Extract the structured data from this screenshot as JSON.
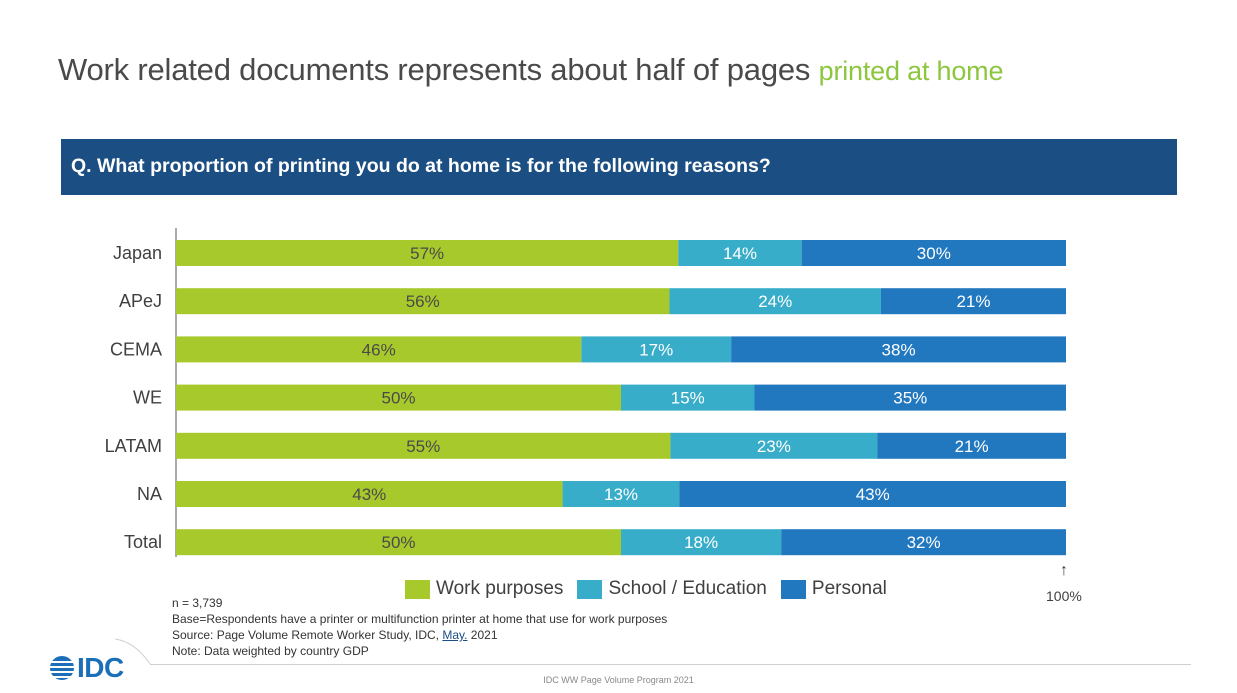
{
  "title": {
    "main": "Work related documents represents about half of pages",
    "accent": "printed at home"
  },
  "question": "Q. What proportion of printing you do at home is for the following reasons?",
  "chart_data": {
    "type": "bar",
    "orientation": "horizontal",
    "stacked": true,
    "categories": [
      "Japan",
      "APeJ",
      "CEMA",
      "WE",
      "LATAM",
      "NA",
      "Total"
    ],
    "series": [
      {
        "name": "Work purposes",
        "color": "#a8c92b",
        "values": [
          57,
          56,
          46,
          50,
          55,
          43,
          50
        ]
      },
      {
        "name": "School / Education",
        "color": "#38adc9",
        "values": [
          14,
          24,
          17,
          15,
          23,
          13,
          18
        ]
      },
      {
        "name": "Personal",
        "color": "#2278bf",
        "values": [
          30,
          21,
          38,
          35,
          21,
          43,
          32
        ]
      }
    ],
    "xlim": [
      0,
      100
    ],
    "end_marker": "100%",
    "legend_position": "bottom"
  },
  "notes": {
    "n": "n = 3,739",
    "base": "Base=Respondents have a printer or multifunction printer at home that use for work purposes",
    "source_prefix": "Source: Page Volume Remote Worker Study, IDC, ",
    "source_month": "May.",
    "source_year": " 2021",
    "note": "Note: Data weighted by country GDP"
  },
  "logo": {
    "text": "IDC"
  },
  "footer": "IDC WW Page Volume Program 2021"
}
